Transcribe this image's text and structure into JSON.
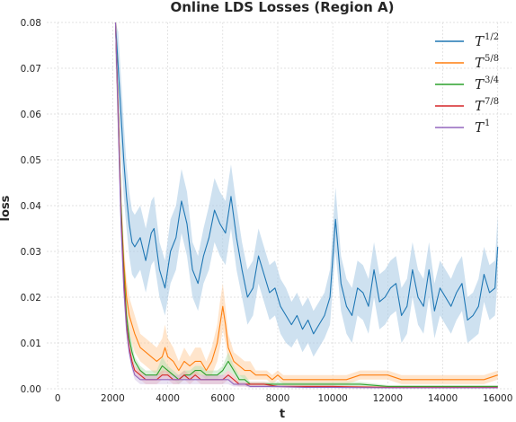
{
  "chart_data": {
    "type": "line",
    "title": "Online LDS Losses (Region A)",
    "xlabel": "t",
    "ylabel": "loss",
    "xlim": [
      -400,
      16500
    ],
    "ylim": [
      0,
      0.08
    ],
    "x_ticks": [
      0,
      2000,
      4000,
      6000,
      8000,
      10000,
      12000,
      14000,
      16000
    ],
    "y_ticks": [
      0.0,
      0.01,
      0.02,
      0.03,
      0.04,
      0.05,
      0.06,
      0.07,
      0.08
    ],
    "x_tick_labels": [
      "0",
      "2000",
      "4000",
      "6000",
      "8000",
      "10000",
      "12000",
      "14000",
      "16000"
    ],
    "y_tick_labels": [
      "0.00",
      "0.01",
      "0.02",
      "0.03",
      "0.04",
      "0.05",
      "0.06",
      "0.07",
      "0.08"
    ],
    "grid": true,
    "legend_position": "top-right",
    "series": [
      {
        "name": "T^{1/2}",
        "legend_base": "T",
        "legend_sup": "1/2",
        "color": "#1f77b4",
        "band_color": "#a6c8e4",
        "x": [
          2100,
          2200,
          2300,
          2400,
          2500,
          2600,
          2700,
          2800,
          3000,
          3200,
          3400,
          3500,
          3700,
          3900,
          4100,
          4300,
          4500,
          4700,
          4900,
          5100,
          5300,
          5500,
          5700,
          5900,
          6100,
          6300,
          6500,
          6700,
          6900,
          7100,
          7300,
          7500,
          7700,
          7900,
          8100,
          8300,
          8500,
          8700,
          8900,
          9100,
          9300,
          9500,
          9700,
          9900,
          10100,
          10300,
          10500,
          10700,
          10900,
          11100,
          11300,
          11500,
          11700,
          11900,
          12100,
          12300,
          12500,
          12700,
          12900,
          13100,
          13300,
          13500,
          13700,
          13900,
          14100,
          14300,
          14500,
          14700,
          14900,
          15100,
          15300,
          15500,
          15700,
          15900,
          16000
        ],
        "values": [
          0.08,
          0.07,
          0.06,
          0.05,
          0.042,
          0.036,
          0.032,
          0.031,
          0.033,
          0.028,
          0.034,
          0.035,
          0.026,
          0.022,
          0.03,
          0.033,
          0.041,
          0.036,
          0.026,
          0.023,
          0.029,
          0.033,
          0.039,
          0.036,
          0.034,
          0.042,
          0.033,
          0.026,
          0.02,
          0.022,
          0.029,
          0.025,
          0.021,
          0.022,
          0.018,
          0.016,
          0.014,
          0.016,
          0.013,
          0.015,
          0.012,
          0.014,
          0.016,
          0.02,
          0.037,
          0.023,
          0.018,
          0.016,
          0.022,
          0.021,
          0.018,
          0.026,
          0.019,
          0.02,
          0.022,
          0.023,
          0.016,
          0.018,
          0.026,
          0.02,
          0.018,
          0.026,
          0.017,
          0.022,
          0.02,
          0.018,
          0.021,
          0.023,
          0.015,
          0.016,
          0.018,
          0.025,
          0.021,
          0.022,
          0.031
        ],
        "band": [
          0.008,
          0.008,
          0.008,
          0.008,
          0.007,
          0.007,
          0.007,
          0.007,
          0.007,
          0.007,
          0.007,
          0.007,
          0.006,
          0.006,
          0.007,
          0.007,
          0.007,
          0.007,
          0.006,
          0.006,
          0.006,
          0.007,
          0.007,
          0.007,
          0.007,
          0.007,
          0.007,
          0.006,
          0.006,
          0.006,
          0.006,
          0.006,
          0.006,
          0.006,
          0.006,
          0.006,
          0.005,
          0.005,
          0.005,
          0.005,
          0.005,
          0.005,
          0.005,
          0.006,
          0.007,
          0.006,
          0.006,
          0.006,
          0.006,
          0.006,
          0.006,
          0.006,
          0.006,
          0.006,
          0.006,
          0.006,
          0.006,
          0.006,
          0.006,
          0.006,
          0.006,
          0.006,
          0.006,
          0.006,
          0.006,
          0.006,
          0.006,
          0.006,
          0.005,
          0.005,
          0.006,
          0.006,
          0.006,
          0.006,
          0.007
        ]
      },
      {
        "name": "T^{5/8}",
        "legend_base": "T",
        "legend_sup": "5/8",
        "color": "#ff7f0e",
        "band_color": "#ffcc99",
        "x": [
          2100,
          2200,
          2300,
          2400,
          2500,
          2600,
          2700,
          2800,
          3000,
          3200,
          3400,
          3600,
          3800,
          3900,
          4000,
          4200,
          4400,
          4600,
          4800,
          5000,
          5200,
          5400,
          5600,
          5800,
          5900,
          6000,
          6100,
          6200,
          6400,
          6600,
          6800,
          7000,
          7200,
          7400,
          7600,
          7800,
          8000,
          8200,
          8500,
          9000,
          9500,
          10000,
          10500,
          11000,
          11500,
          12000,
          12500,
          13000,
          13500,
          14000,
          14500,
          15000,
          15500,
          16000
        ],
        "values": [
          0.08,
          0.06,
          0.04,
          0.028,
          0.02,
          0.016,
          0.014,
          0.012,
          0.009,
          0.008,
          0.007,
          0.006,
          0.007,
          0.009,
          0.007,
          0.006,
          0.004,
          0.006,
          0.005,
          0.006,
          0.006,
          0.004,
          0.006,
          0.01,
          0.014,
          0.018,
          0.014,
          0.009,
          0.006,
          0.005,
          0.004,
          0.004,
          0.003,
          0.003,
          0.003,
          0.002,
          0.003,
          0.002,
          0.002,
          0.002,
          0.002,
          0.002,
          0.002,
          0.003,
          0.003,
          0.003,
          0.002,
          0.002,
          0.002,
          0.002,
          0.002,
          0.002,
          0.002,
          0.003
        ],
        "band": [
          0.008,
          0.006,
          0.005,
          0.004,
          0.004,
          0.004,
          0.004,
          0.004,
          0.003,
          0.003,
          0.003,
          0.003,
          0.004,
          0.005,
          0.004,
          0.003,
          0.002,
          0.003,
          0.002,
          0.003,
          0.003,
          0.002,
          0.003,
          0.004,
          0.005,
          0.005,
          0.004,
          0.003,
          0.002,
          0.002,
          0.002,
          0.002,
          0.001,
          0.001,
          0.001,
          0.001,
          0.001,
          0.001,
          0.001,
          0.001,
          0.001,
          0.001,
          0.001,
          0.001,
          0.001,
          0.001,
          0.001,
          0.001,
          0.001,
          0.001,
          0.001,
          0.001,
          0.001,
          0.001
        ]
      },
      {
        "name": "T^{3/4}",
        "legend_base": "T",
        "legend_sup": "3/4",
        "color": "#2ca02c",
        "band_color": "#b2dfb2",
        "x": [
          2100,
          2200,
          2300,
          2400,
          2500,
          2600,
          2700,
          2800,
          3000,
          3200,
          3400,
          3600,
          3800,
          4000,
          4200,
          4400,
          4600,
          4800,
          5000,
          5200,
          5400,
          5600,
          5800,
          6000,
          6200,
          6400,
          6600,
          6800,
          7000,
          7500,
          8000,
          8500,
          9000,
          9500,
          10000,
          11000,
          12000,
          13000,
          14000,
          15000,
          16000
        ],
        "values": [
          0.08,
          0.06,
          0.04,
          0.026,
          0.016,
          0.011,
          0.008,
          0.006,
          0.004,
          0.003,
          0.003,
          0.003,
          0.005,
          0.004,
          0.003,
          0.002,
          0.003,
          0.003,
          0.004,
          0.004,
          0.003,
          0.003,
          0.003,
          0.004,
          0.006,
          0.004,
          0.002,
          0.002,
          0.001,
          0.001,
          0.001,
          0.001,
          0.001,
          0.001,
          0.001,
          0.001,
          0.0005,
          0.0005,
          0.0005,
          0.0005,
          0.0005
        ],
        "band": [
          0.006,
          0.005,
          0.004,
          0.003,
          0.002,
          0.002,
          0.002,
          0.001,
          0.001,
          0.001,
          0.001,
          0.001,
          0.002,
          0.001,
          0.001,
          0.001,
          0.001,
          0.001,
          0.001,
          0.001,
          0.001,
          0.001,
          0.001,
          0.001,
          0.002,
          0.001,
          0.001,
          0.001,
          0.0005,
          0.0005,
          0.0005,
          0.0005,
          0.0005,
          0.0005,
          0.0005,
          0.0005,
          0.0003,
          0.0003,
          0.0003,
          0.0003,
          0.0003
        ]
      },
      {
        "name": "T^{7/8}",
        "legend_base": "T",
        "legend_sup": "7/8",
        "color": "#d62728",
        "band_color": "#f2a9a9",
        "x": [
          2100,
          2200,
          2300,
          2400,
          2500,
          2600,
          2700,
          2800,
          3000,
          3200,
          3400,
          3600,
          3800,
          4000,
          4200,
          4400,
          4600,
          4800,
          5000,
          5200,
          5400,
          5600,
          5800,
          6000,
          6200,
          6400,
          6600,
          6800,
          7000,
          7500,
          8000,
          9000,
          10000,
          12000,
          14000,
          16000
        ],
        "values": [
          0.08,
          0.06,
          0.038,
          0.024,
          0.014,
          0.009,
          0.006,
          0.004,
          0.003,
          0.002,
          0.002,
          0.002,
          0.003,
          0.003,
          0.002,
          0.002,
          0.003,
          0.002,
          0.003,
          0.002,
          0.002,
          0.002,
          0.002,
          0.002,
          0.003,
          0.002,
          0.001,
          0.001,
          0.001,
          0.001,
          0.0005,
          0.0005,
          0.0005,
          0.0003,
          0.0003,
          0.0003
        ],
        "band": [
          0.005,
          0.004,
          0.003,
          0.002,
          0.002,
          0.001,
          0.001,
          0.001,
          0.001,
          0.001,
          0.001,
          0.001,
          0.001,
          0.001,
          0.001,
          0.001,
          0.001,
          0.001,
          0.001,
          0.001,
          0.001,
          0.001,
          0.001,
          0.001,
          0.001,
          0.001,
          0.0005,
          0.0005,
          0.0005,
          0.0005,
          0.0003,
          0.0003,
          0.0003,
          0.0002,
          0.0002,
          0.0002
        ]
      },
      {
        "name": "T^{1}",
        "legend_base": "T",
        "legend_sup": "1",
        "color": "#9467bd",
        "band_color": "#d4c4e6",
        "x": [
          2100,
          2200,
          2300,
          2400,
          2500,
          2600,
          2700,
          2800,
          3000,
          3200,
          3400,
          3600,
          3800,
          4000,
          4200,
          4400,
          4600,
          4800,
          5000,
          5200,
          5400,
          5600,
          5800,
          6000,
          6200,
          6400,
          6600,
          6800,
          7000,
          7500,
          8000,
          9000,
          10000,
          12000,
          14000,
          16000
        ],
        "values": [
          0.08,
          0.058,
          0.036,
          0.022,
          0.013,
          0.008,
          0.005,
          0.003,
          0.002,
          0.002,
          0.002,
          0.002,
          0.002,
          0.002,
          0.002,
          0.002,
          0.002,
          0.002,
          0.002,
          0.002,
          0.002,
          0.002,
          0.002,
          0.002,
          0.002,
          0.001,
          0.001,
          0.001,
          0.0005,
          0.0005,
          0.0005,
          0.0003,
          0.0003,
          0.0002,
          0.0002,
          0.0002
        ],
        "band": [
          0.005,
          0.004,
          0.003,
          0.002,
          0.002,
          0.001,
          0.001,
          0.001,
          0.001,
          0.001,
          0.001,
          0.001,
          0.001,
          0.001,
          0.001,
          0.001,
          0.001,
          0.001,
          0.001,
          0.001,
          0.001,
          0.001,
          0.001,
          0.001,
          0.001,
          0.0005,
          0.0005,
          0.0005,
          0.0003,
          0.0003,
          0.0003,
          0.0002,
          0.0002,
          0.0001,
          0.0001,
          0.0001
        ]
      }
    ]
  }
}
